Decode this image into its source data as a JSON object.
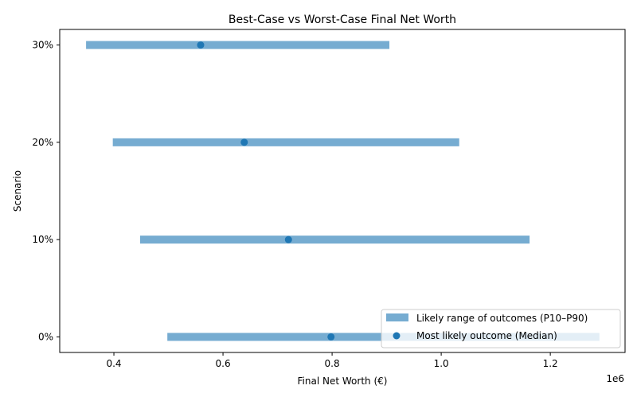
{
  "chart_data": {
    "type": "range-dot",
    "title": "Best-Case vs Worst-Case Final Net Worth",
    "xlabel": "Final Net Worth (€)",
    "ylabel": "Scenario",
    "x_offset_label": "1e6",
    "xlim": [
      0.3007,
      1.337
    ],
    "x_ticks": [
      0.4,
      0.6,
      0.8,
      1.0,
      1.2
    ],
    "x_tick_labels": [
      "0.4",
      "0.6",
      "0.8",
      "1.0",
      "1.2"
    ],
    "categories": [
      "0%",
      "10%",
      "20%",
      "30%"
    ],
    "series": [
      {
        "name": "Likely range of outcomes (P10–P90)",
        "kind": "range",
        "color": "#76acd1",
        "low": [
          0.498,
          0.448,
          0.398,
          0.349
        ],
        "high": [
          1.29,
          1.162,
          1.033,
          0.905
        ]
      },
      {
        "name": "Most likely outcome (Median)",
        "kind": "point",
        "color": "#1f77b4",
        "values": [
          0.798,
          0.72,
          0.639,
          0.559
        ]
      }
    ],
    "legend_position": "lower-right",
    "grid": false
  }
}
